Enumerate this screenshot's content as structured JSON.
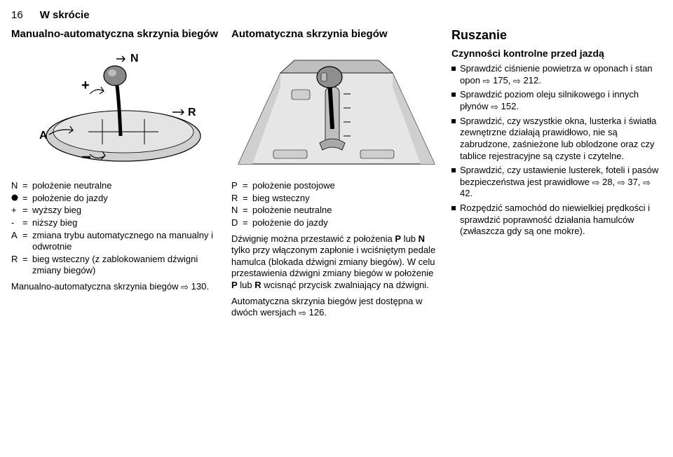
{
  "page_number": "16",
  "page_title": "W skrócie",
  "col1": {
    "heading": "Manualno-automatyczna skrzynia biegów",
    "figure": {
      "labels": {
        "N": "N",
        "R": "R",
        "A": "A",
        "plus": "+",
        "minus": "−"
      },
      "colors": {
        "stroke": "#000000",
        "fill_body": "#d0d0d0",
        "fill_shadow": "#a8a8a8",
        "fill_knob": "#888888",
        "bg": "#ffffff"
      }
    },
    "defs": [
      {
        "k": "N",
        "v": "położenie neutralne"
      },
      {
        "k_svg": "circle",
        "v": "położenie do jazdy"
      },
      {
        "k": "+",
        "v": "wyższy bieg"
      },
      {
        "k": "-",
        "v": "niższy bieg"
      },
      {
        "k": "A",
        "v": "zmiana trybu automatycznego na manualny i odwrotnie"
      },
      {
        "k": "R",
        "v": "bieg wsteczny (z zablokowaniem dźwigni zmiany biegów)"
      }
    ],
    "footer": "Manualno-automatyczna skrzynia biegów",
    "footer_ref": "130."
  },
  "col2": {
    "heading": "Automatyczna skrzynia biegów",
    "figure": {
      "colors": {
        "stroke": "#000000",
        "fill_light": "#e6e6e6",
        "fill_mid": "#bfbfbf",
        "fill_dark": "#8f8f8f"
      }
    },
    "defs": [
      {
        "k": "P",
        "v": "położenie postojowe"
      },
      {
        "k": "R",
        "v": "bieg wsteczny"
      },
      {
        "k": "N",
        "v": "położenie neutralne"
      },
      {
        "k": "D",
        "v": "położenie do jazdy"
      }
    ],
    "para1_pre": "Dźwignię można przestawić z położenia ",
    "para1_b1": "P",
    "para1_mid1": " lub ",
    "para1_b2": "N",
    "para1_mid2": " tylko przy włączonym zapłonie i wciśniętym pedale hamulca (blokada dźwigni zmiany biegów). W celu przestawienia dźwigni zmiany biegów w położenie ",
    "para1_b3": "P",
    "para1_mid3": " lub ",
    "para1_b4": "R",
    "para1_end": " wcisnąć przycisk zwalniający na dźwigni.",
    "para2": "Automatyczna skrzynia biegów jest dostępna w dwóch wersjach",
    "para2_ref": "126."
  },
  "col3": {
    "heading": "Ruszanie",
    "subheading": "Czynności kontrolne przed jazdą",
    "items": [
      {
        "text": "Sprawdzić ciśnienie powietrza w oponach i stan opon",
        "refs": [
          "175,",
          "212."
        ]
      },
      {
        "text": "Sprawdzić poziom oleju silnikowego i innych płynów",
        "refs": [
          "152."
        ]
      },
      {
        "text": "Sprawdzić, czy wszystkie okna, lusterka i światła zewnętrzne działają prawidłowo, nie są zabrudzone, zaśnieżone lub oblodzone oraz czy tablice rejestracyjne są czyste i czytelne.",
        "refs": []
      },
      {
        "text": "Sprawdzić, czy ustawienie lusterek, foteli i pasów bezpieczeństwa jest prawidłowe",
        "refs": [
          "28,",
          "37,",
          "42."
        ]
      },
      {
        "text": "Rozpędzić samochód do niewielkiej prędkości i sprawdzić poprawność działania hamulców (zwłaszcza gdy są one mokre).",
        "refs": []
      }
    ]
  },
  "ref_icon": "⇨"
}
